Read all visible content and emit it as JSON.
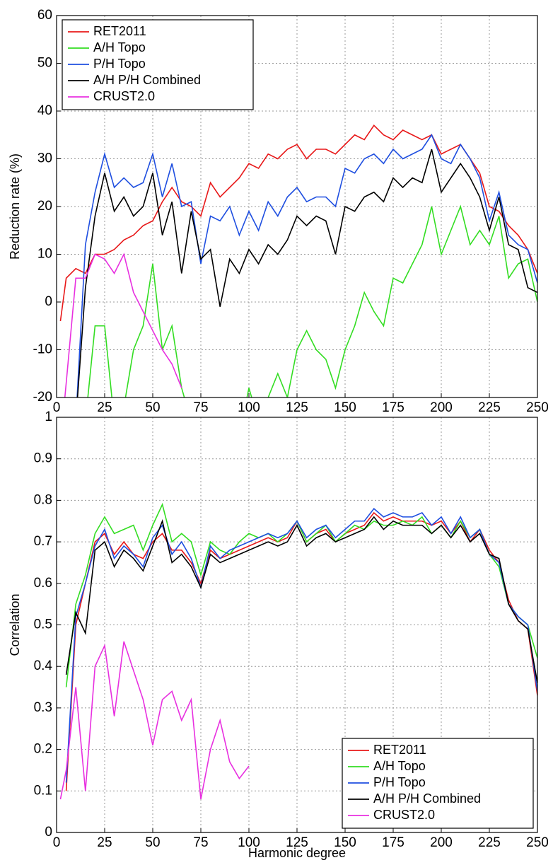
{
  "chart_data": [
    {
      "type": "line",
      "ylabel": "Reduction rate (%)",
      "legend": "upper left",
      "grid": true,
      "xlim": [
        0,
        250
      ],
      "xticks": [
        0,
        25,
        50,
        75,
        100,
        125,
        150,
        175,
        200,
        225,
        250
      ],
      "ylim": [
        -20,
        60
      ],
      "yticks": [
        -20,
        -10,
        0,
        10,
        20,
        30,
        40,
        50,
        60
      ],
      "x": [
        2,
        5,
        10,
        15,
        20,
        25,
        30,
        35,
        40,
        45,
        50,
        55,
        60,
        65,
        70,
        75,
        80,
        85,
        90,
        95,
        100,
        105,
        110,
        115,
        120,
        125,
        130,
        135,
        140,
        145,
        150,
        155,
        160,
        165,
        170,
        175,
        180,
        185,
        190,
        195,
        200,
        205,
        210,
        215,
        220,
        225,
        230,
        235,
        240,
        245,
        250
      ],
      "series": [
        {
          "name": "RET2011",
          "color": "#e8191a",
          "values": [
            -4,
            5,
            7,
            6,
            10,
            10,
            11,
            13,
            14,
            16,
            17,
            21,
            24,
            21,
            20,
            18,
            25,
            22,
            24,
            26,
            29,
            28,
            31,
            30,
            32,
            33,
            30,
            32,
            32,
            31,
            33,
            35,
            34,
            37,
            35,
            34,
            36,
            35,
            34,
            35,
            31,
            32,
            33,
            30,
            27,
            20,
            19,
            16,
            14,
            11,
            6
          ]
        },
        {
          "name": "A/H Topo",
          "color": "#33dd22",
          "values": [
            null,
            null,
            null,
            -25,
            -5,
            -5,
            -25,
            -22,
            -10,
            -5,
            8,
            -10,
            -5,
            -18,
            -25,
            -23,
            -25,
            -28,
            -22,
            -28,
            -18,
            -25,
            -20,
            -15,
            -20,
            -10,
            -6,
            -10,
            -12,
            -18,
            -10,
            -5,
            2,
            -2,
            -5,
            5,
            4,
            8,
            12,
            20,
            10,
            15,
            20,
            12,
            15,
            12,
            18,
            5,
            8,
            9,
            0
          ]
        },
        {
          "name": "P/H Topo",
          "color": "#1f4fe0",
          "values": [
            null,
            null,
            -25,
            12,
            23,
            31,
            24,
            26,
            24,
            25,
            31,
            22,
            29,
            20,
            21,
            8,
            18,
            17,
            20,
            14,
            19,
            15,
            21,
            18,
            22,
            24,
            21,
            22,
            22,
            20,
            28,
            27,
            30,
            31,
            29,
            32,
            30,
            31,
            32,
            35,
            30,
            29,
            33,
            30,
            26,
            17,
            23,
            14,
            12,
            11,
            4
          ]
        },
        {
          "name": "A/H P/H Combined",
          "color": "#000000",
          "values": [
            null,
            null,
            -25,
            3,
            18,
            27,
            19,
            22,
            18,
            20,
            27,
            14,
            21,
            6,
            19,
            9,
            11,
            -1,
            9,
            6,
            11,
            8,
            12,
            10,
            13,
            18,
            16,
            18,
            17,
            10,
            20,
            19,
            22,
            23,
            21,
            26,
            24,
            26,
            25,
            32,
            23,
            26,
            29,
            26,
            22,
            15,
            22,
            12,
            11,
            3,
            2
          ]
        },
        {
          "name": "CRUST2.0",
          "color": "#e830e0",
          "values": [
            -30,
            -17,
            5,
            5,
            10,
            9,
            6,
            10,
            2,
            -2,
            -6,
            -10,
            -13,
            -18,
            null,
            null,
            null,
            null,
            null,
            null,
            null,
            null,
            null,
            null,
            null,
            null,
            null,
            null,
            null,
            null,
            null,
            null,
            null,
            null,
            null,
            null,
            null,
            null,
            null,
            null,
            null,
            null,
            null,
            null,
            null,
            null,
            null,
            null,
            null,
            null,
            null
          ]
        }
      ]
    },
    {
      "type": "line",
      "xlabel": "Harmonic degree",
      "ylabel": "Correlation",
      "legend": "lower right",
      "grid": true,
      "xlim": [
        0,
        250
      ],
      "xticks": [
        0,
        25,
        50,
        75,
        100,
        125,
        150,
        175,
        200,
        225,
        250
      ],
      "ylim": [
        0,
        1
      ],
      "yticks": [
        0,
        0.1,
        0.2,
        0.3,
        0.4,
        0.5,
        0.6,
        0.7,
        0.8,
        0.9,
        1
      ],
      "x": [
        2,
        5,
        10,
        15,
        20,
        25,
        30,
        35,
        40,
        45,
        50,
        55,
        60,
        65,
        70,
        75,
        80,
        85,
        90,
        95,
        100,
        105,
        110,
        115,
        120,
        125,
        130,
        135,
        140,
        145,
        150,
        155,
        160,
        165,
        170,
        175,
        180,
        185,
        190,
        195,
        200,
        205,
        210,
        215,
        220,
        225,
        230,
        235,
        240,
        245,
        250
      ],
      "series": [
        {
          "name": "RET2011",
          "color": "#e8191a",
          "values": [
            null,
            0.1,
            0.5,
            0.6,
            0.7,
            0.72,
            0.67,
            0.7,
            0.67,
            0.66,
            0.7,
            0.72,
            0.68,
            0.68,
            0.65,
            0.6,
            0.68,
            0.66,
            0.67,
            0.68,
            0.69,
            0.7,
            0.71,
            0.7,
            0.71,
            0.75,
            0.7,
            0.72,
            0.73,
            0.7,
            0.72,
            0.73,
            0.74,
            0.77,
            0.75,
            0.76,
            0.75,
            0.75,
            0.75,
            0.74,
            0.75,
            0.72,
            0.75,
            0.7,
            0.73,
            0.68,
            0.65,
            0.56,
            0.51,
            0.49,
            0.33
          ]
        },
        {
          "name": "A/H Topo",
          "color": "#33dd22",
          "values": [
            null,
            0.35,
            0.55,
            0.62,
            0.72,
            0.76,
            0.72,
            0.73,
            0.74,
            0.68,
            0.74,
            0.79,
            0.7,
            0.72,
            0.7,
            0.62,
            0.7,
            0.68,
            0.67,
            0.7,
            0.72,
            0.71,
            0.72,
            0.7,
            0.72,
            0.75,
            0.7,
            0.72,
            0.74,
            0.7,
            0.72,
            0.74,
            0.73,
            0.75,
            0.74,
            0.74,
            0.75,
            0.74,
            0.76,
            0.72,
            0.74,
            0.71,
            0.75,
            0.71,
            0.73,
            0.67,
            0.64,
            0.55,
            0.52,
            0.5,
            0.42
          ]
        },
        {
          "name": "P/H Topo",
          "color": "#1f4fe0",
          "values": [
            null,
            0.12,
            0.52,
            0.6,
            0.69,
            0.73,
            0.66,
            0.69,
            0.67,
            0.64,
            0.71,
            0.74,
            0.67,
            0.7,
            0.66,
            0.59,
            0.69,
            0.66,
            0.68,
            0.69,
            0.7,
            0.71,
            0.72,
            0.71,
            0.72,
            0.75,
            0.71,
            0.73,
            0.74,
            0.71,
            0.73,
            0.75,
            0.75,
            0.78,
            0.76,
            0.77,
            0.76,
            0.76,
            0.77,
            0.74,
            0.76,
            0.72,
            0.76,
            0.71,
            0.73,
            0.67,
            0.65,
            0.55,
            0.52,
            0.5,
            0.34
          ]
        },
        {
          "name": "A/H P/H Combined",
          "color": "#000000",
          "values": [
            null,
            0.38,
            0.53,
            0.48,
            0.68,
            0.7,
            0.64,
            0.68,
            0.66,
            0.63,
            0.69,
            0.75,
            0.65,
            0.67,
            0.64,
            0.59,
            0.67,
            0.65,
            0.66,
            0.67,
            0.68,
            0.69,
            0.7,
            0.69,
            0.7,
            0.74,
            0.69,
            0.71,
            0.72,
            0.7,
            0.71,
            0.72,
            0.73,
            0.76,
            0.73,
            0.75,
            0.74,
            0.74,
            0.74,
            0.72,
            0.74,
            0.71,
            0.74,
            0.7,
            0.72,
            0.67,
            0.66,
            0.55,
            0.51,
            0.49,
            0.36
          ]
        },
        {
          "name": "CRUST2.0",
          "color": "#e830e0",
          "values": [
            0.08,
            0.15,
            0.35,
            0.1,
            0.4,
            0.45,
            0.28,
            0.46,
            0.39,
            0.32,
            0.21,
            0.32,
            0.34,
            0.27,
            0.32,
            0.08,
            0.2,
            0.27,
            0.17,
            0.13,
            0.16,
            null,
            null,
            null,
            null,
            null,
            null,
            null,
            null,
            null,
            null,
            null,
            null,
            null,
            null,
            null,
            null,
            null,
            null,
            null,
            null,
            null,
            null,
            null,
            null,
            null,
            null,
            null,
            null,
            null,
            null
          ]
        }
      ]
    }
  ]
}
